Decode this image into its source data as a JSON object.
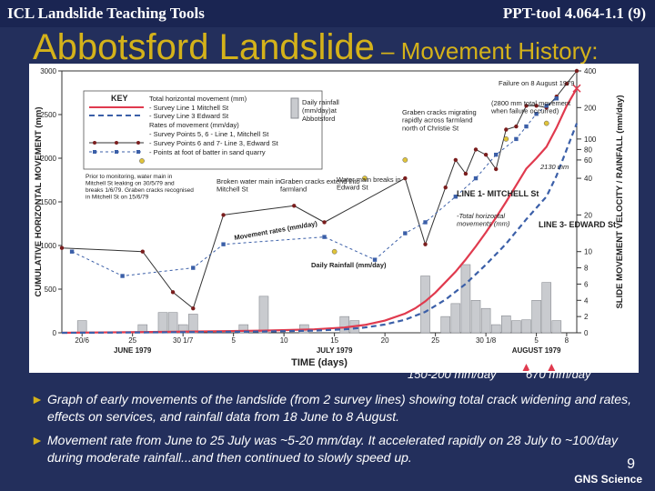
{
  "header": {
    "left": "ICL Landslide Teaching Tools",
    "right": "PPT-tool 4.064-1.1 (9)"
  },
  "title": {
    "main": "Abbotsford Landslide",
    "sub": " – Movement History:"
  },
  "chart_data": {
    "type": "line",
    "xlabel": "TIME (days)",
    "ylabel_left": "CUMULATIVE HORIZONTAL MOVEMENT (mm)",
    "ylabel_right": "SLIDE MOVEMENT VELOCITY / RAINFALL (mm/day)",
    "x_tick_labels": [
      "20/6",
      "25",
      "30 1/7",
      "5",
      "10",
      "15",
      "20",
      "25",
      "30 1/8",
      "5",
      "8"
    ],
    "month_labels": [
      "JUNE 1979",
      "JULY 1979",
      "AUGUST 1979"
    ],
    "y_left_ticks": [
      0,
      500,
      1000,
      1500,
      2000,
      2500,
      3000
    ],
    "y_right_ticks": [
      0,
      2,
      4,
      6,
      8,
      10,
      20,
      40,
      60,
      80,
      100,
      200,
      400
    ],
    "key": {
      "title": "KEY",
      "items": [
        "Total horizontal movement (mm)",
        "- Survey Line 1 Mitchell St",
        "- Survey Line 3 Edward St",
        "Rates of movement (mm/day)",
        "- Survey Points 5, 6 - Line 1, Mitchell St",
        "- Survey Points 6 and 7- Line 3, Edward St",
        "- Points at foot of batter in sand quarry"
      ],
      "rain_item": [
        "Daily rainfall",
        "(mm/day)at",
        "Abbotsford"
      ]
    },
    "series": [
      {
        "name": "Total horizontal movement - Survey Line 1 Mitchell St",
        "unit": "mm",
        "x": [
          0,
          10,
          20,
          25,
          28,
          30,
          32,
          34,
          35,
          36,
          37,
          38,
          39,
          40,
          41,
          42,
          43,
          44,
          45,
          46,
          47,
          48,
          49,
          50,
          51
        ],
        "values": [
          0,
          10,
          25,
          40,
          60,
          90,
          140,
          220,
          280,
          360,
          460,
          580,
          700,
          840,
          990,
          1150,
          1320,
          1500,
          1690,
          1880,
          2000,
          2130,
          2350,
          2600,
          2800
        ]
      },
      {
        "name": "Total horizontal movement - Survey Line 3 Edward St",
        "unit": "mm",
        "x": [
          0,
          10,
          20,
          25,
          28,
          30,
          32,
          34,
          36,
          38,
          40,
          42,
          44,
          46,
          48,
          49,
          50,
          51
        ],
        "values": [
          0,
          5,
          15,
          25,
          40,
          60,
          95,
          150,
          240,
          380,
          560,
          780,
          1020,
          1300,
          1560,
          1800,
          2100,
          2400
        ]
      },
      {
        "name": "Rates of movement - Survey Points 5, 6 - Line 1, Mitchell St",
        "unit": "mm/day",
        "x": [
          0,
          8,
          11,
          13,
          16,
          23,
          26,
          34,
          36,
          38,
          39,
          40,
          41,
          42,
          43,
          44,
          45,
          46,
          47,
          48,
          49,
          50,
          51
        ],
        "values": [
          11,
          10,
          5,
          3,
          20,
          25,
          18,
          40,
          12,
          35,
          60,
          45,
          80,
          70,
          50,
          130,
          140,
          210,
          210,
          200,
          260,
          330,
          400
        ]
      },
      {
        "name": "Rates of movement - Survey Points 6 and 7 - Line 3, Edward St",
        "unit": "mm/day",
        "x": [
          1,
          6,
          13,
          16,
          26,
          31,
          34,
          36,
          39,
          41,
          43,
          45,
          46,
          47,
          48,
          49
        ],
        "values": [
          10,
          7,
          8,
          12,
          14,
          9,
          15,
          18,
          30,
          40,
          70,
          100,
          140,
          180,
          210,
          250
        ]
      },
      {
        "name": "Points at foot of batter in sand quarry",
        "unit": "mm/day",
        "x": [
          27,
          30,
          34,
          44,
          48
        ],
        "values": [
          10,
          40,
          60,
          100,
          150
        ]
      }
    ],
    "rainfall": {
      "name": "Daily rainfall (mm/day) at Abbotsford",
      "unit": "mm/day",
      "x": [
        2,
        8,
        10,
        11,
        12,
        13,
        18,
        20,
        24,
        28,
        29,
        36,
        38,
        39,
        40,
        41,
        42,
        43,
        44,
        45,
        46,
        47,
        48,
        49
      ],
      "values": [
        1.5,
        1,
        2.5,
        2.5,
        1,
        2.3,
        1,
        4.5,
        1,
        2,
        1.5,
        7,
        2,
        3.6,
        8.4,
        4,
        3,
        1,
        2.1,
        1.5,
        1.6,
        4,
        6.2,
        1.5
      ]
    },
    "annotations": [
      "Failure on 8 August 1979",
      "(2800 mm total movement when failure occurred)",
      "Graben cracks migrating rapidly across farmland north of Christie St",
      "2130 mm",
      "Prior to monitoring, water main in Mitchell St leaking on 30/5/79 and breaks 1/6/79. Graben cracks recognised in Mitchell St on 15/6/79",
      "Broken water main in Mitchell St",
      "Graben cracks extend into farmland",
      "Water main breaks in Edward St",
      "Movement rates (mm/day)",
      "LINE 1- MITCHELL St",
      "-Total horizontal movements (mm)",
      "LINE 3- EDWARD St",
      "Daily Rainfall (mm/day)"
    ]
  },
  "rain_notes": {
    "left": "150-200 mm/day",
    "right": "670 mm/day"
  },
  "bullets": [
    "Graph of early movements of the landslide (from 2 survey lines) showing total crack widening and rates, effects on services, and rainfall data from 18 June to 8 August.",
    "Movement rate from June to 25 July was ~5-20 mm/day. It accelerated rapidly on 28 July to ~100/day during moderate rainfall...and then continued to slowly speed up."
  ],
  "bullet_glyph": "►",
  "page_number": "9",
  "footer": "GNS Science"
}
